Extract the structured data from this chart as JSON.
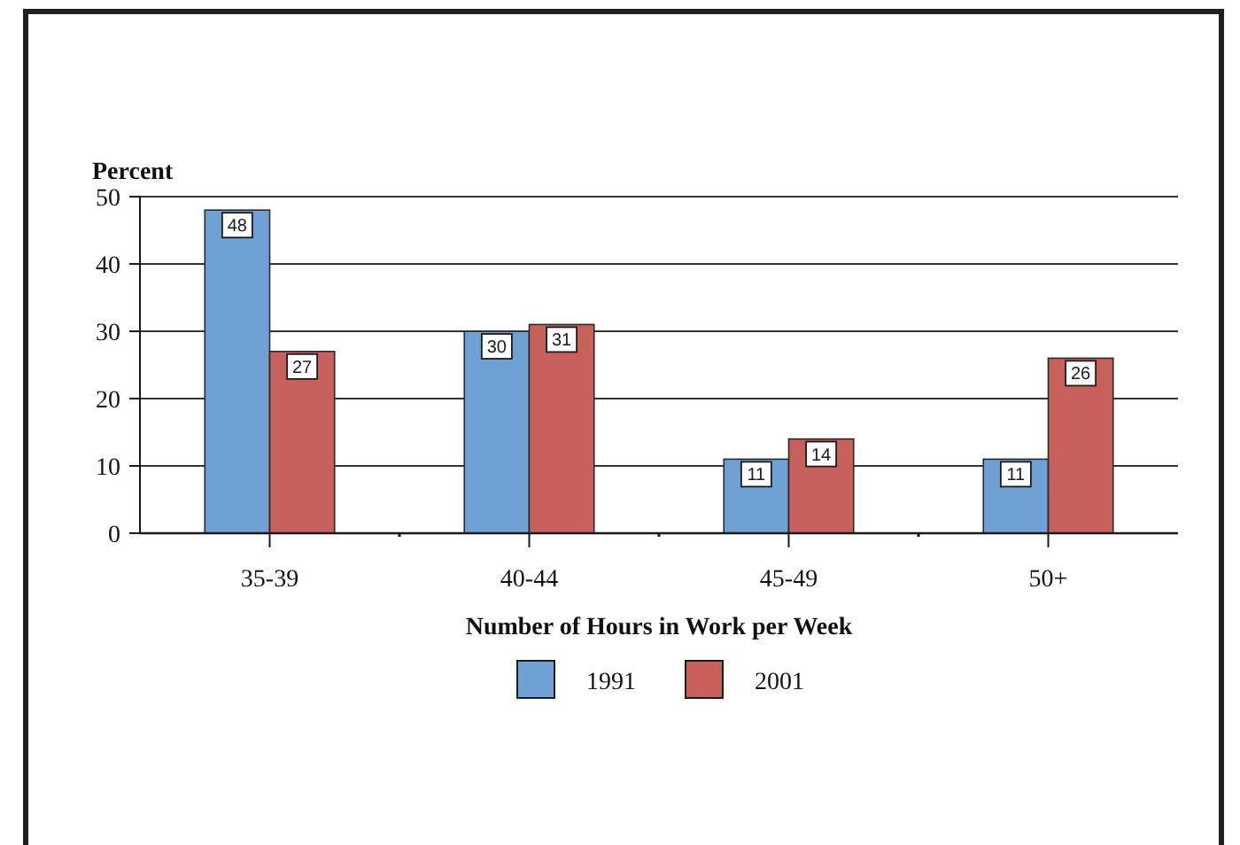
{
  "chart_data": {
    "type": "bar",
    "ylabel": "Percent",
    "xlabel": "Number of Hours in Work per Week",
    "categories": [
      "35-39",
      "40-44",
      "45-49",
      "50+"
    ],
    "series": [
      {
        "name": "1991",
        "color": "#6fa1d5",
        "values": [
          48,
          30,
          11,
          11
        ]
      },
      {
        "name": "2001",
        "color": "#c8615c",
        "values": [
          27,
          31,
          14,
          26
        ]
      }
    ],
    "ylim": [
      0,
      50
    ],
    "yticks": [
      0,
      10,
      20,
      30,
      40,
      50
    ],
    "grid": "y",
    "legend": "bottom",
    "data_labels": true
  }
}
